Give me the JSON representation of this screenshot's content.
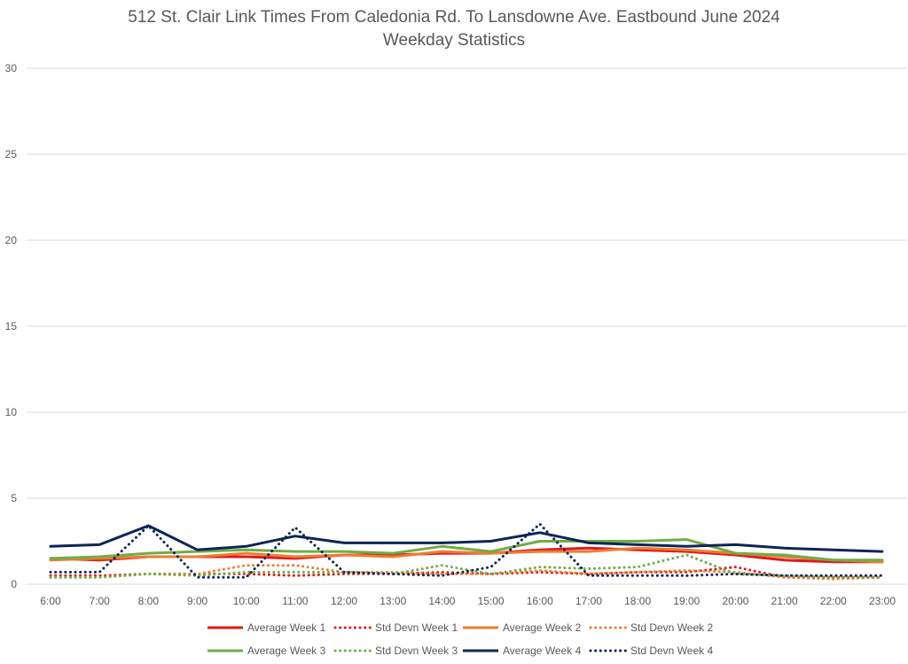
{
  "chart_data": {
    "type": "line",
    "title": "512 St. Clair Link Times From Caledonia Rd. To Lansdowne Ave. Eastbound June 2024",
    "subtitle": "Weekday Statistics",
    "xlabel": "",
    "ylabel": "",
    "ylim": [
      0,
      30
    ],
    "yticks": [
      0,
      5,
      10,
      15,
      20,
      25,
      30
    ],
    "grid": "horizontal",
    "legend": "bottom",
    "categories": [
      "6:00",
      "7:00",
      "8:00",
      "9:00",
      "10:00",
      "11:00",
      "12:00",
      "13:00",
      "14:00",
      "15:00",
      "16:00",
      "17:00",
      "18:00",
      "19:00",
      "20:00",
      "21:00",
      "22:00",
      "23:00"
    ],
    "series": [
      {
        "name": "Average Week 1",
        "color": "#e0191b",
        "dash": "solid",
        "values": [
          1.5,
          1.4,
          1.6,
          1.6,
          1.6,
          1.5,
          1.7,
          1.7,
          1.8,
          1.8,
          2.0,
          2.1,
          2.0,
          1.9,
          1.7,
          1.4,
          1.3,
          1.3
        ]
      },
      {
        "name": "Std Devn Week 1",
        "color": "#e0191b",
        "dash": "dotted",
        "values": [
          0.5,
          0.5,
          0.6,
          0.6,
          0.6,
          0.5,
          0.6,
          0.6,
          0.7,
          0.6,
          0.7,
          0.6,
          0.7,
          0.7,
          1.0,
          0.4,
          0.4,
          0.4
        ]
      },
      {
        "name": "Average Week 2",
        "color": "#ed7d31",
        "dash": "solid",
        "values": [
          1.4,
          1.5,
          1.6,
          1.6,
          1.8,
          1.6,
          1.7,
          1.6,
          1.9,
          1.8,
          1.9,
          1.9,
          2.1,
          2.0,
          1.8,
          1.6,
          1.4,
          1.3
        ]
      },
      {
        "name": "Std Devn Week 2",
        "color": "#ed7d31",
        "dash": "dotted",
        "values": [
          0.4,
          0.4,
          0.6,
          0.6,
          1.1,
          1.1,
          0.7,
          0.7,
          0.6,
          0.6,
          0.8,
          0.6,
          0.7,
          0.8,
          0.7,
          0.4,
          0.3,
          0.4
        ]
      },
      {
        "name": "Average Week 3",
        "color": "#70ad47",
        "dash": "solid",
        "values": [
          1.5,
          1.6,
          1.8,
          1.9,
          2.0,
          1.9,
          1.9,
          1.8,
          2.2,
          1.9,
          2.5,
          2.5,
          2.5,
          2.6,
          1.8,
          1.7,
          1.4,
          1.4
        ]
      },
      {
        "name": "Std Devn Week 3",
        "color": "#70ad47",
        "dash": "dotted",
        "values": [
          0.4,
          0.4,
          0.6,
          0.5,
          0.7,
          0.7,
          0.7,
          0.6,
          1.1,
          0.6,
          1.0,
          0.9,
          1.0,
          1.7,
          0.6,
          0.5,
          0.4,
          0.4
        ]
      },
      {
        "name": "Average Week 4",
        "color": "#0d2557",
        "dash": "solid",
        "values": [
          2.2,
          2.3,
          3.4,
          2.0,
          2.2,
          2.8,
          2.4,
          2.4,
          2.4,
          2.5,
          3.0,
          2.4,
          2.3,
          2.2,
          2.3,
          2.1,
          2.0,
          1.9
        ]
      },
      {
        "name": "Std Devn Week 4",
        "color": "#0d2557",
        "dash": "dotted",
        "values": [
          0.7,
          0.7,
          3.4,
          0.4,
          0.4,
          3.3,
          0.7,
          0.6,
          0.5,
          1.0,
          3.5,
          0.5,
          0.5,
          0.5,
          0.6,
          0.5,
          0.5,
          0.5
        ]
      }
    ]
  }
}
